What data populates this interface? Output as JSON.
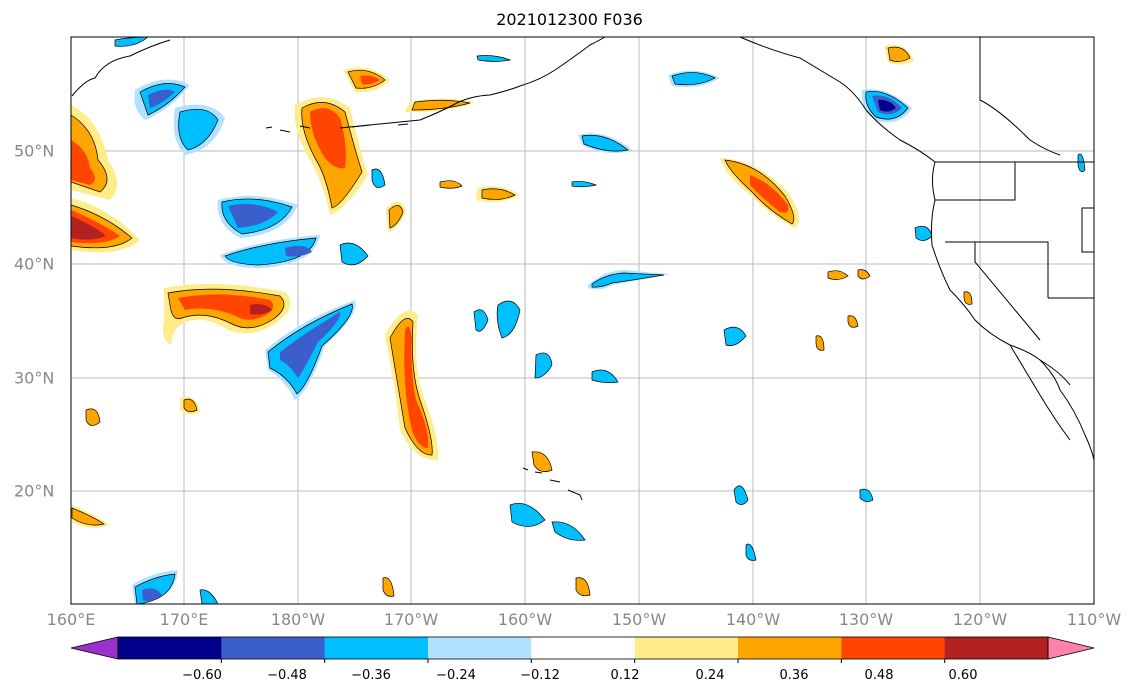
{
  "title": "2021012300 F036",
  "lon_ticks": [
    "160°E",
    "170°E",
    "180°W",
    "170°W",
    "160°W",
    "150°W",
    "140°W",
    "130°W",
    "120°W",
    "110°W"
  ],
  "lat_ticks": [
    "50°N",
    "40°N",
    "30°N",
    "20°N"
  ],
  "colorbar": {
    "ticks": [
      "−0.60",
      "−0.48",
      "−0.36",
      "−0.24",
      "−0.12",
      "0.12",
      "0.24",
      "0.36",
      "0.48",
      "0.60"
    ],
    "colors": [
      "#9932CC",
      "#00008B",
      "#3A5FCD",
      "#00BFFF",
      "#B0E2FF",
      "#FFFFFF",
      "#FFEC8B",
      "#FFA500",
      "#FF4500",
      "#B22222",
      "#FF82AB"
    ]
  },
  "colors": {
    "coast": "#000000",
    "grid": "#BBBBBB",
    "neg1": "#B0E2FF",
    "neg2": "#00BFFF",
    "neg3": "#3A5FCD",
    "neg4": "#00008B",
    "pos1": "#FFEC8B",
    "pos2": "#FFA500",
    "pos3": "#FF4500",
    "pos4": "#B22222"
  }
}
